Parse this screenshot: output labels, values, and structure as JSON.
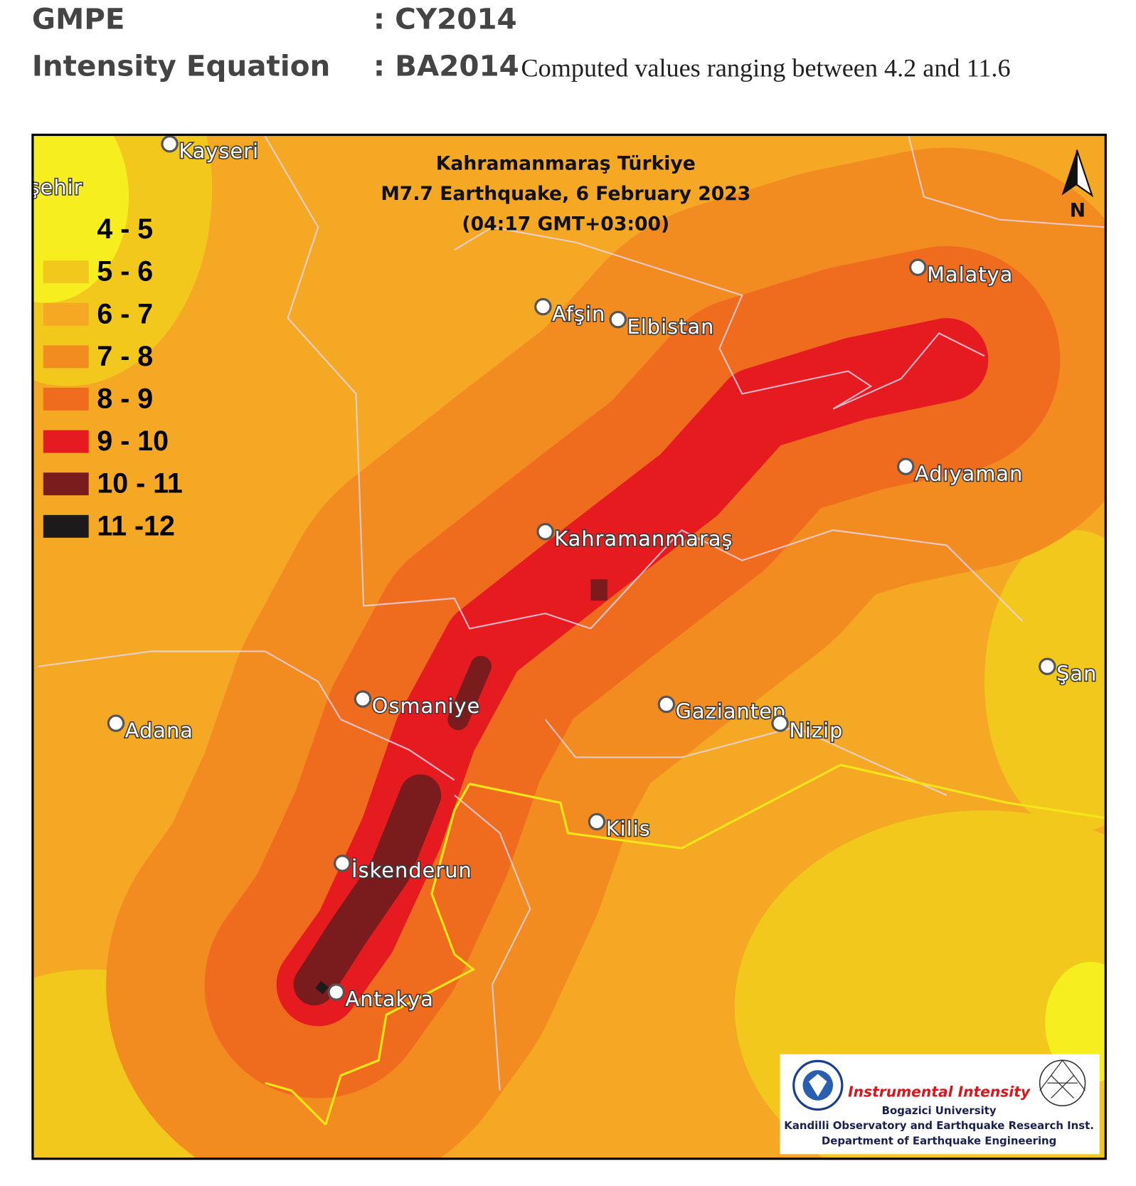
{
  "header": {
    "rows": [
      {
        "label": "GMPE",
        "value": ": CY2014"
      },
      {
        "label": "Intensity Equation",
        "value": ": BA2014",
        "note": "Computed values ranging between 4.2 and 11.6"
      }
    ]
  },
  "map": {
    "title": [
      "Kahramanmaraş Türkiye",
      "M7.7 Earthquake, 6 February 2023",
      "(04:17 GMT+03:00)"
    ],
    "north": "N",
    "legend": [
      {
        "label": "4 - 5",
        "color": "#f7ee1f"
      },
      {
        "label": "5 - 6",
        "color": "#f2c81c"
      },
      {
        "label": "6 - 7",
        "color": "#f4a824"
      },
      {
        "label": "7 - 8",
        "color": "#f28b20"
      },
      {
        "label": "8 - 9",
        "color": "#ef6c1f"
      },
      {
        "label": "9 - 10",
        "color": "#e61b1f"
      },
      {
        "label": "10 - 11",
        "color": "#7a1b1d"
      },
      {
        "label": "11 -12",
        "color": "#1c1a1a"
      }
    ],
    "cities": [
      "Kayseri",
      "şehir",
      "Malatya",
      "Afşin",
      "Elbistan",
      "Adıyaman",
      "Kahramanmaraş",
      "Şan",
      "Osmaniye",
      "Adana",
      "Gaziantep",
      "Nizip",
      "Kilis",
      "İskenderun",
      "Antakya"
    ],
    "logo": {
      "title": "Instrumental Intensity",
      "lines": [
        "Bogazici University",
        "Kandilli Observatory and Earthquake Research Inst.",
        "Department of Earthquake Engineering"
      ]
    }
  }
}
